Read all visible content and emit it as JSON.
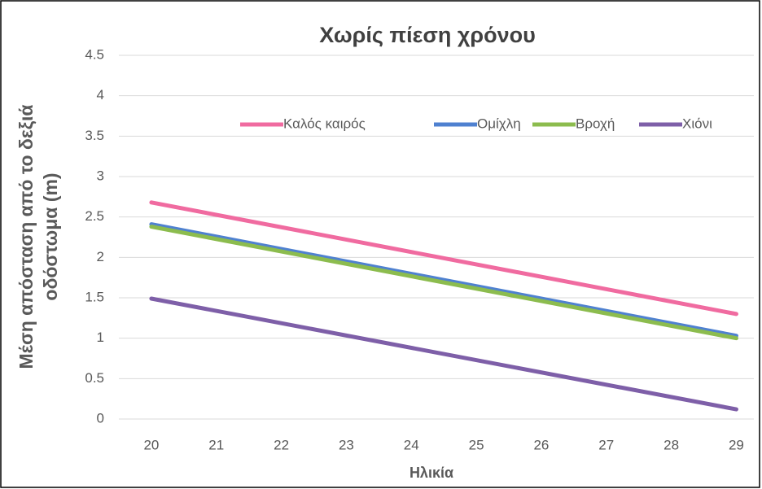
{
  "chart_data": {
    "type": "line",
    "title": "Χωρίς πίεση χρόνου",
    "xlabel": "Ηλικία",
    "ylabel": [
      "Μέση απόσταση από το δεξιά",
      "οδόστωμα (m)"
    ],
    "x": [
      20,
      29
    ],
    "series": [
      {
        "name": "Καλός καιρός",
        "color": "#f06ba0",
        "values": [
          2.68,
          1.3
        ]
      },
      {
        "name": "Ομίχλη",
        "color": "#4f81d0",
        "values": [
          2.41,
          1.03
        ]
      },
      {
        "name": "Βροχή",
        "color": "#8cbc4e",
        "values": [
          2.38,
          1.0
        ]
      },
      {
        "name": "Χιόνι",
        "color": "#7e5fa8",
        "values": [
          1.49,
          0.12
        ]
      }
    ],
    "xlim": [
      19.5,
      29.27
    ],
    "xticks": [
      20,
      21,
      22,
      23,
      24,
      25,
      26,
      27,
      28,
      29
    ],
    "ylim": [
      0,
      4.5
    ],
    "yticks": [
      0,
      0.5,
      1,
      1.5,
      2,
      2.5,
      3,
      3.5,
      4,
      4.5
    ],
    "grid": true,
    "legend": "top"
  }
}
